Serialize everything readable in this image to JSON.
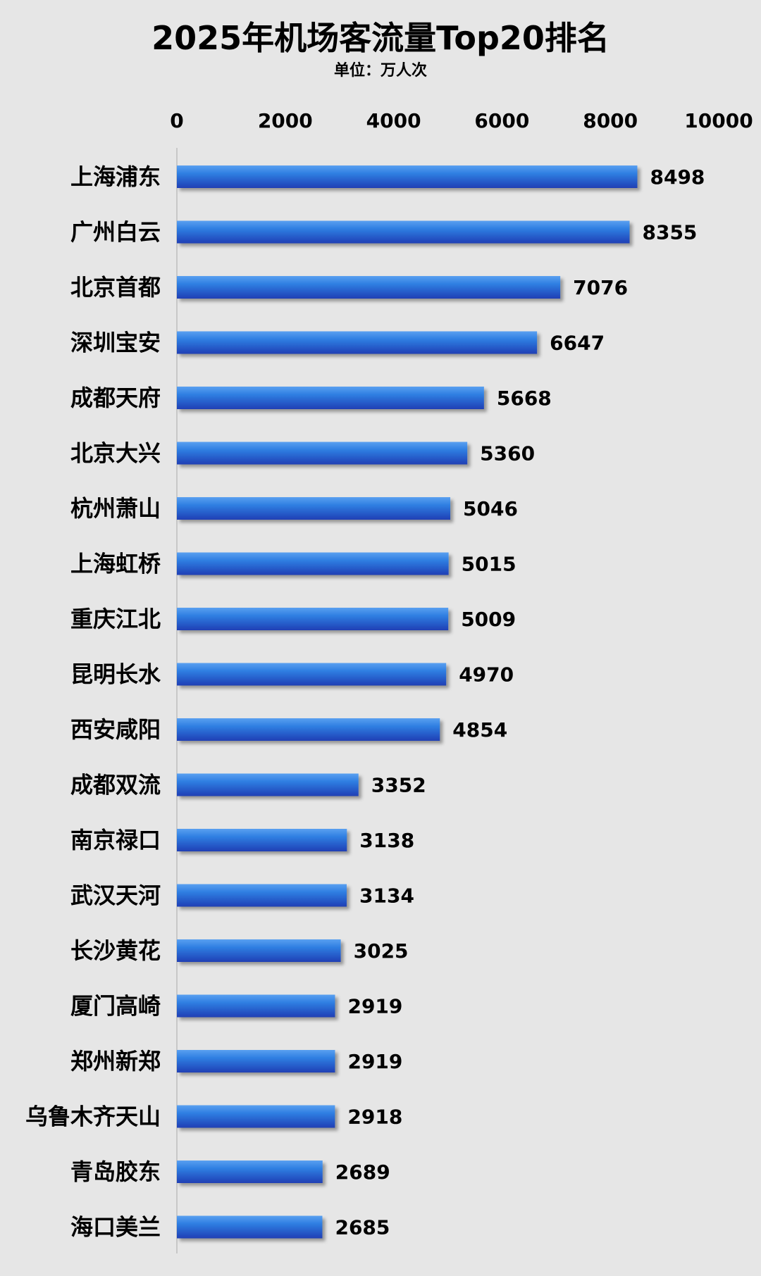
{
  "chart_data": {
    "type": "bar",
    "orientation": "horizontal",
    "title": "2025年机场客流量Top20排名",
    "subtitle": "单位：万人次",
    "xlabel": "",
    "ylabel": "",
    "xlim": [
      0,
      10000
    ],
    "xticks": [
      "0",
      "2000",
      "4000",
      "6000",
      "8000",
      "10000"
    ],
    "axis_position": "top",
    "grid": false,
    "legend": "none",
    "categories": [
      "上海浦东",
      "广州白云",
      "北京首都",
      "深圳宝安",
      "成都天府",
      "北京大兴",
      "杭州萧山",
      "上海虹桥",
      "重庆江北",
      "昆明长水",
      "西安咸阳",
      "成都双流",
      "南京禄口",
      "武汉天河",
      "长沙黄花",
      "厦门高崎",
      "郑州新郑",
      "乌鲁木齐天山",
      "青岛胶东",
      "海口美兰"
    ],
    "values": [
      8498,
      8355,
      7076,
      6647,
      5668,
      5360,
      5046,
      5015,
      5009,
      4970,
      4854,
      3352,
      3138,
      3134,
      3025,
      2919,
      2919,
      2918,
      2689,
      2685
    ],
    "colors": {
      "background": "#e6e6e6",
      "bar_light": "#2f7fe2",
      "bar_dark": "#1f3fb5",
      "text": "#000000",
      "axis": "#bdbdbd"
    }
  }
}
